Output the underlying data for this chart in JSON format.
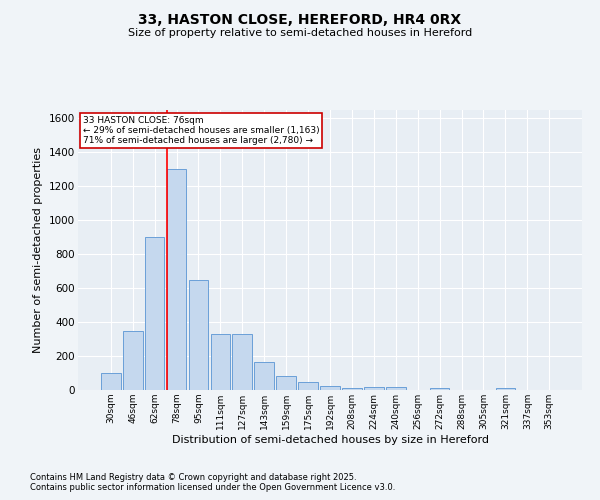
{
  "title1": "33, HASTON CLOSE, HEREFORD, HR4 0RX",
  "title2": "Size of property relative to semi-detached houses in Hereford",
  "xlabel": "Distribution of semi-detached houses by size in Hereford",
  "ylabel": "Number of semi-detached properties",
  "categories": [
    "30sqm",
    "46sqm",
    "62sqm",
    "78sqm",
    "95sqm",
    "111sqm",
    "127sqm",
    "143sqm",
    "159sqm",
    "175sqm",
    "192sqm",
    "208sqm",
    "224sqm",
    "240sqm",
    "256sqm",
    "272sqm",
    "288sqm",
    "305sqm",
    "321sqm",
    "337sqm",
    "353sqm"
  ],
  "values": [
    100,
    350,
    900,
    1300,
    650,
    330,
    330,
    165,
    80,
    50,
    25,
    12,
    15,
    15,
    0,
    12,
    0,
    0,
    12,
    0,
    0
  ],
  "bar_color": "#c5d8ee",
  "bar_edge_color": "#6a9fd8",
  "red_line_index": 3,
  "property_label": "33 HASTON CLOSE: 76sqm",
  "smaller_text": "← 29% of semi-detached houses are smaller (1,163)",
  "larger_text": "71% of semi-detached houses are larger (2,780) →",
  "annotation_box_color": "#cc0000",
  "ylim": [
    0,
    1650
  ],
  "yticks": [
    0,
    200,
    400,
    600,
    800,
    1000,
    1200,
    1400,
    1600
  ],
  "footer1": "Contains HM Land Registry data © Crown copyright and database right 2025.",
  "footer2": "Contains public sector information licensed under the Open Government Licence v3.0.",
  "bg_color": "#f0f4f8",
  "plot_bg": "#e8eef4"
}
